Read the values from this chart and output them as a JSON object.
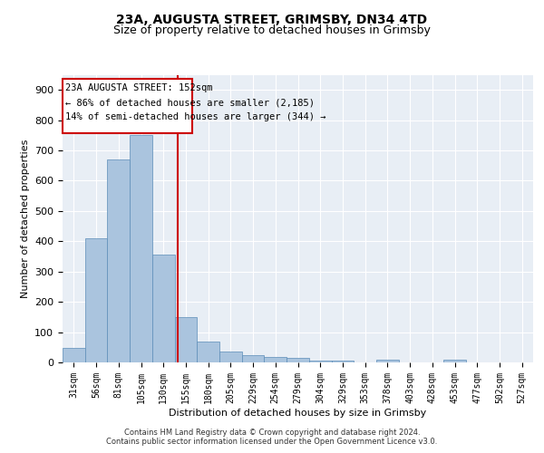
{
  "title1": "23A, AUGUSTA STREET, GRIMSBY, DN34 4TD",
  "title2": "Size of property relative to detached houses in Grimsby",
  "xlabel": "Distribution of detached houses by size in Grimsby",
  "ylabel": "Number of detached properties",
  "bar_labels": [
    "31sqm",
    "56sqm",
    "81sqm",
    "105sqm",
    "130sqm",
    "155sqm",
    "180sqm",
    "205sqm",
    "229sqm",
    "254sqm",
    "279sqm",
    "304sqm",
    "329sqm",
    "353sqm",
    "378sqm",
    "403sqm",
    "428sqm",
    "453sqm",
    "477sqm",
    "502sqm",
    "527sqm"
  ],
  "bar_values": [
    48,
    410,
    670,
    750,
    355,
    150,
    70,
    35,
    25,
    18,
    15,
    7,
    5,
    0,
    8,
    0,
    0,
    8,
    0,
    0,
    0
  ],
  "bar_color": "#aac4de",
  "bar_edge_color": "#5b8db8",
  "background_color": "#e8eef5",
  "vline_color": "#cc0000",
  "annotation_box_color": "#cc0000",
  "annotation_text1": "23A AUGUSTA STREET: 152sqm",
  "annotation_text2": "← 86% of detached houses are smaller (2,185)",
  "annotation_text3": "14% of semi-detached houses are larger (344) →",
  "ylim": [
    0,
    950
  ],
  "yticks": [
    0,
    100,
    200,
    300,
    400,
    500,
    600,
    700,
    800,
    900
  ],
  "footer_text": "Contains HM Land Registry data © Crown copyright and database right 2024.\nContains public sector information licensed under the Open Government Licence v3.0.",
  "grid_color": "#ffffff",
  "title_fontsize": 10,
  "subtitle_fontsize": 9,
  "tick_fontsize": 7,
  "ylabel_fontsize": 8,
  "xlabel_fontsize": 8,
  "annotation_fontsize": 7.5
}
